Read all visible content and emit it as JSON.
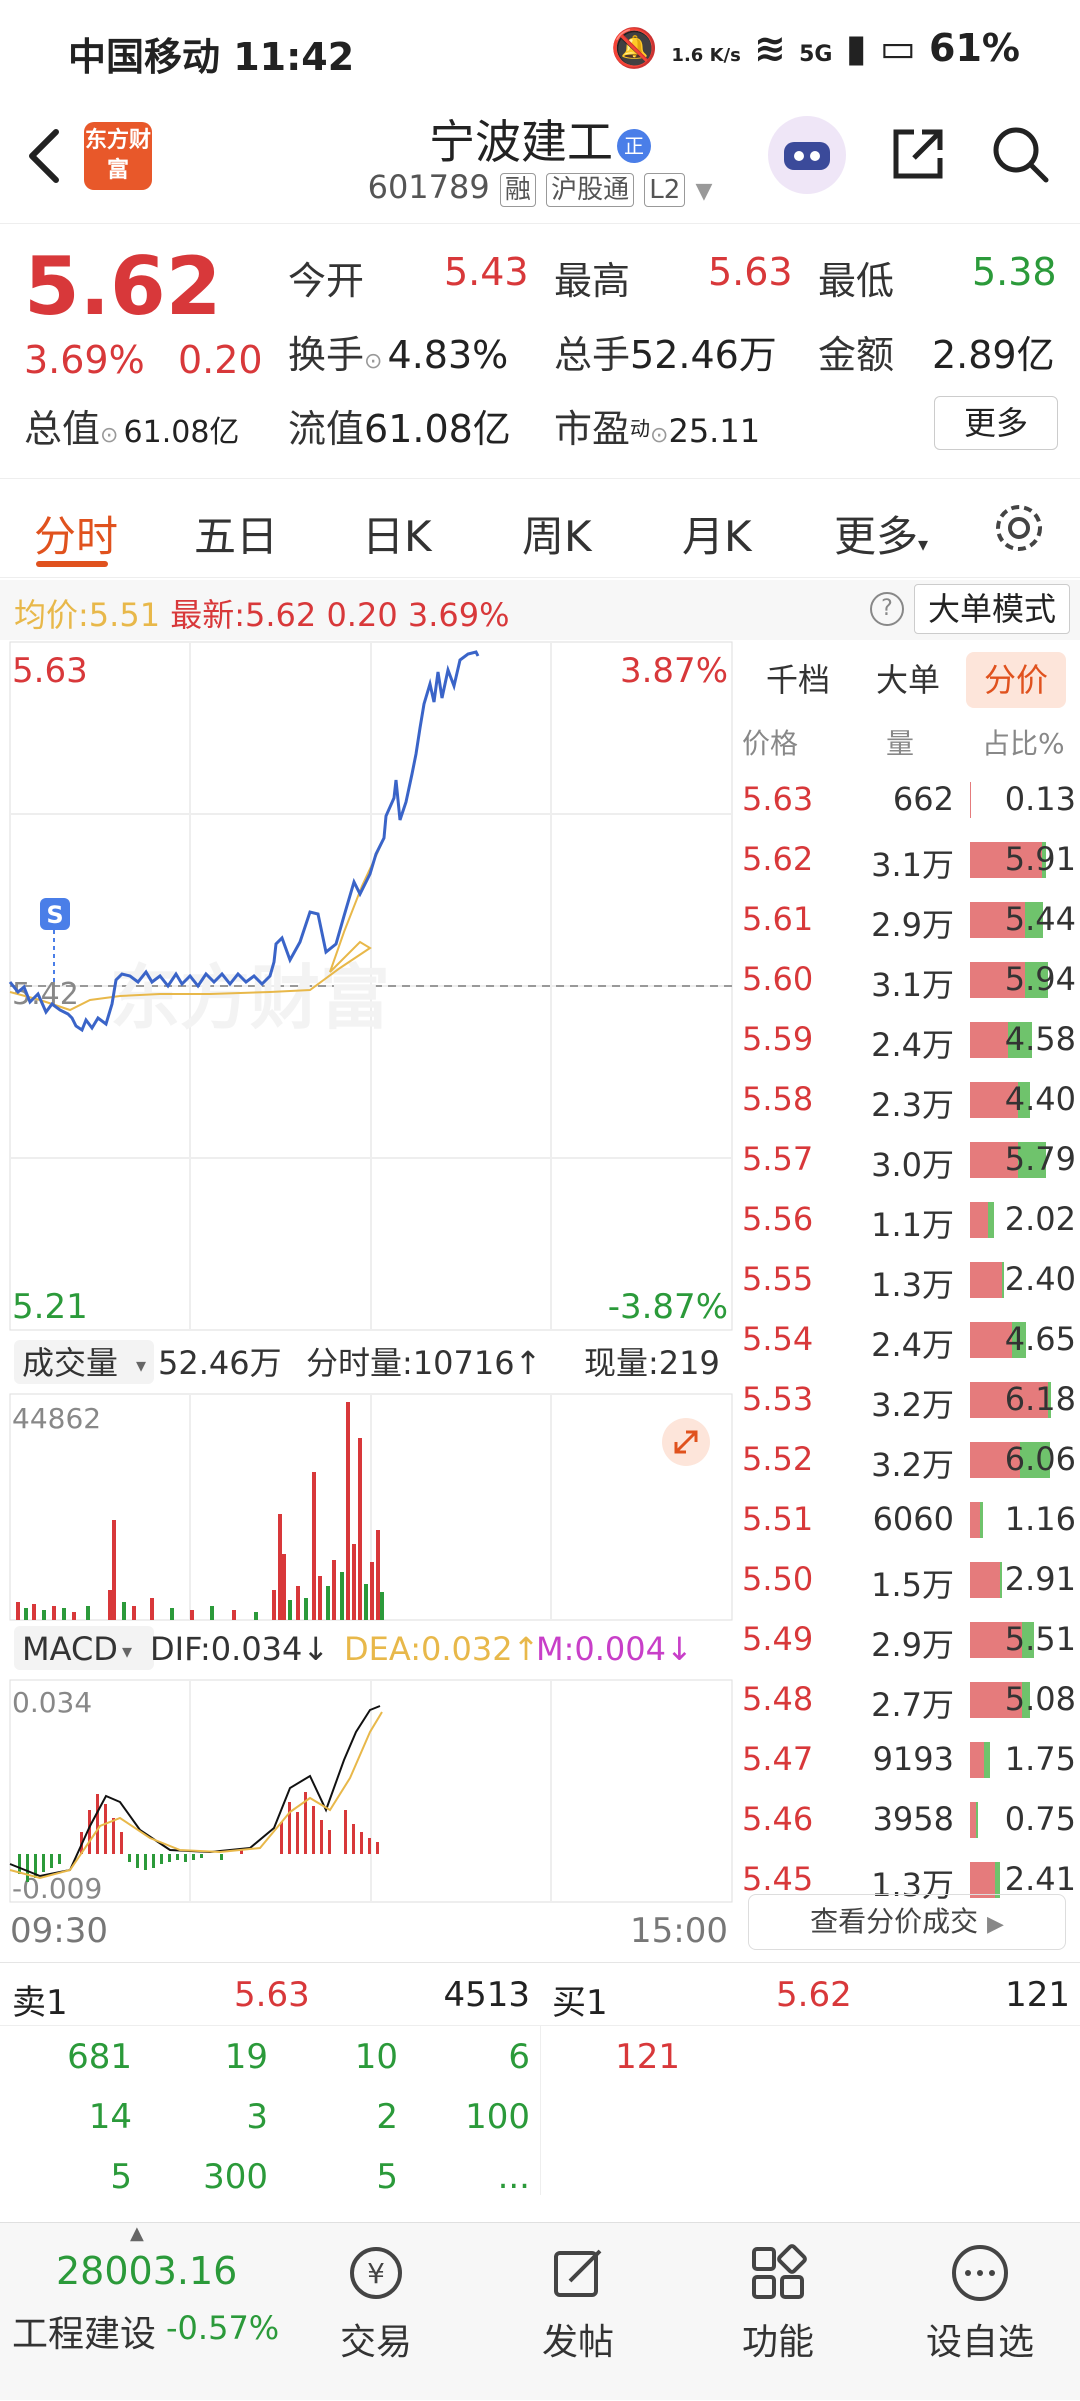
{
  "status_bar": {
    "carrier_time": "中国移动 11:42",
    "net_speed": "1.6 K/s",
    "network": "5G",
    "battery": "61%"
  },
  "header": {
    "logo_text": "东方财富",
    "stock_name": "宁波建工",
    "stock_badge": "正",
    "stock_code": "601789",
    "tags": [
      "融",
      "沪股通",
      "L2"
    ]
  },
  "quote": {
    "price": "5.62",
    "change_pct": "3.69%",
    "change": "0.20",
    "open_label": "今开",
    "open": "5.43",
    "high_label": "最高",
    "high": "5.63",
    "low_label": "最低",
    "low": "5.38",
    "turnover_label": "换手",
    "turnover": "4.83%",
    "volume_label": "总手",
    "volume": "52.46万",
    "amount_label": "金额",
    "amount": "2.89亿",
    "mktcap_label": "总值",
    "mktcap": "61.08亿",
    "float_label": "流值",
    "float": "61.08亿",
    "pe_label": "市盈",
    "pe_sup": "动",
    "pe": "25.11",
    "more": "更多"
  },
  "tabs": [
    "分时",
    "五日",
    "日K",
    "周K",
    "月K",
    "更多"
  ],
  "info_row": {
    "avg_label": "均价:",
    "avg": "5.51",
    "latest_label": "最新:",
    "latest": "5.62",
    "latest_change": "0.20",
    "latest_pct": "3.69%",
    "big_order_mode": "大单模式"
  },
  "chart": {
    "top_price": "5.63",
    "top_pct": "3.87%",
    "bottom_price": "5.21",
    "bottom_pct": "-3.87%",
    "mid_price": "5.42",
    "signal": "S",
    "watermark": "东方财富",
    "volume_label": "成交量",
    "volume_total": "52.46万",
    "minute_volume": "分时量:10716↑",
    "current_volume": "现量:219",
    "volume_max": "44862",
    "macd_label": "MACD",
    "dif": "DIF:0.034↓",
    "dea": "DEA:0.032↑",
    "m": "M:0.004↓",
    "macd_top": "0.034",
    "macd_bottom": "-0.009",
    "time_start": "09:30",
    "time_end": "15:00"
  },
  "price_table": {
    "tabs": [
      "千档",
      "大单",
      "分价"
    ],
    "headers": [
      "价格",
      "量",
      "占比%"
    ],
    "rows": [
      {
        "price": "5.63",
        "vol": "662",
        "pct": "0.13",
        "buy": 0.01,
        "sell": 0.0
      },
      {
        "price": "5.62",
        "vol": "3.1万",
        "pct": "5.91",
        "buy": 0.72,
        "sell": 0.04
      },
      {
        "price": "5.61",
        "vol": "2.9万",
        "pct": "5.44",
        "buy": 0.55,
        "sell": 0.18
      },
      {
        "price": "5.60",
        "vol": "3.1万",
        "pct": "5.94",
        "buy": 0.55,
        "sell": 0.23
      },
      {
        "price": "5.59",
        "vol": "2.4万",
        "pct": "4.58",
        "buy": 0.38,
        "sell": 0.24
      },
      {
        "price": "5.58",
        "vol": "2.3万",
        "pct": "4.40",
        "buy": 0.48,
        "sell": 0.12
      },
      {
        "price": "5.57",
        "vol": "3.0万",
        "pct": "5.79",
        "buy": 0.48,
        "sell": 0.28
      },
      {
        "price": "5.56",
        "vol": "1.1万",
        "pct": "2.02",
        "buy": 0.18,
        "sell": 0.06
      },
      {
        "price": "5.55",
        "vol": "1.3万",
        "pct": "2.40",
        "buy": 0.32,
        "sell": 0.02
      },
      {
        "price": "5.54",
        "vol": "2.4万",
        "pct": "4.65",
        "buy": 0.42,
        "sell": 0.14
      },
      {
        "price": "5.53",
        "vol": "3.2万",
        "pct": "6.18",
        "buy": 0.78,
        "sell": 0.03
      },
      {
        "price": "5.52",
        "vol": "3.2万",
        "pct": "6.06",
        "buy": 0.5,
        "sell": 0.3
      },
      {
        "price": "5.51",
        "vol": "6060",
        "pct": "1.16",
        "buy": 0.1,
        "sell": 0.03
      },
      {
        "price": "5.50",
        "vol": "1.5万",
        "pct": "2.91",
        "buy": 0.3,
        "sell": 0.02
      },
      {
        "price": "5.49",
        "vol": "2.9万",
        "pct": "5.51",
        "buy": 0.52,
        "sell": 0.12
      },
      {
        "price": "5.48",
        "vol": "2.7万",
        "pct": "5.08",
        "buy": 0.52,
        "sell": 0.08
      },
      {
        "price": "5.47",
        "vol": "9193",
        "pct": "1.75",
        "buy": 0.14,
        "sell": 0.06
      },
      {
        "price": "5.46",
        "vol": "3958",
        "pct": "0.75",
        "buy": 0.06,
        "sell": 0.02
      },
      {
        "price": "5.45",
        "vol": "1.3万",
        "pct": "2.41",
        "buy": 0.25,
        "sell": 0.05
      }
    ],
    "view_button": "查看分价成交"
  },
  "order_book": {
    "sell_label": "卖1",
    "sell_price": "5.63",
    "sell_qty": "4513",
    "buy_label": "买1",
    "buy_price": "5.62",
    "buy_qty": "121",
    "sell_queue": [
      "681",
      "19",
      "10",
      "6",
      "14",
      "3",
      "2",
      "100",
      "5",
      "300",
      "5",
      "..."
    ],
    "buy_queue": [
      "121"
    ]
  },
  "bottom_bar": {
    "index_value": "28003.16",
    "index_name": "工程建设",
    "index_change": "-0.57%",
    "items": [
      "交易",
      "发帖",
      "功能",
      "设自选"
    ]
  },
  "colors": {
    "up": "#d8383a",
    "down": "#2b9a3a",
    "accent": "#e0521e",
    "price_line": "#3a64c8",
    "avg_line": "#e8b84a"
  }
}
